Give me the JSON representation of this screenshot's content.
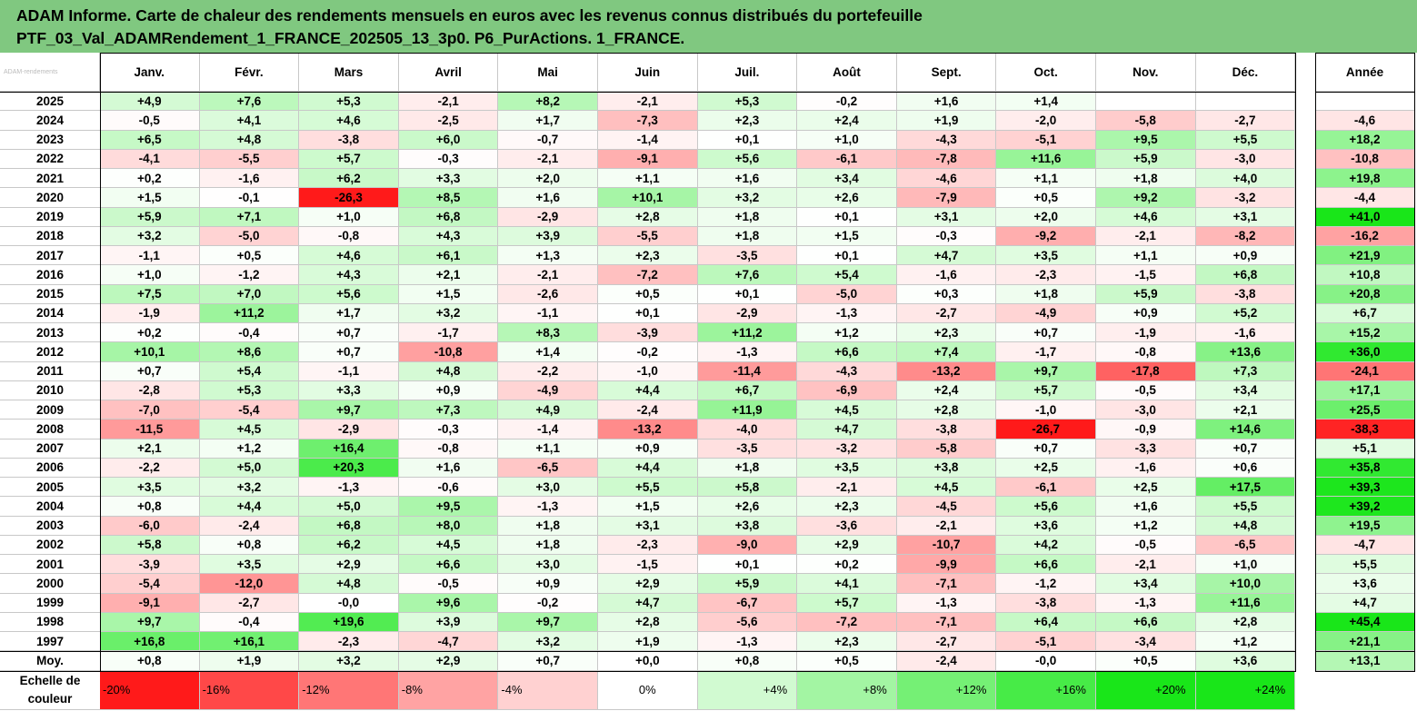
{
  "header": {
    "line1": "ADAM Informe. Carte de chaleur des rendements mensuels en euros avec les revenus connus distribués du portefeuille",
    "line2": "PTF_03_Val_ADAMRendement_1_FRANCE_202505_13_3p0. P6_PurActions. 1_FRANCE."
  },
  "corner_label": "ADAM-rendements",
  "chart_data": {
    "type": "heatmap",
    "title": "ADAM Informe. Carte de chaleur des rendements mensuels en euros avec les revenus connus distribués du portefeuille PTF_03_Val_ADAMRendement_1_FRANCE_202505_13_3p0. P6_PurActions. 1_FRANCE.",
    "months": [
      "Janv.",
      "Févr.",
      "Mars",
      "Avril",
      "Mai",
      "Juin",
      "Juil.",
      "Août",
      "Sept.",
      "Oct.",
      "Nov.",
      "Déc."
    ],
    "year_header": "Année",
    "rows": [
      {
        "label": "2025",
        "m": [
          "+4,9",
          "+7,6",
          "+5,3",
          "-2,1",
          "+8,2",
          "-2,1",
          "+5,3",
          "-0,2",
          "+1,6",
          "+1,4",
          "",
          ""
        ],
        "y": ""
      },
      {
        "label": "2024",
        "m": [
          "-0,5",
          "+4,1",
          "+4,6",
          "-2,5",
          "+1,7",
          "-7,3",
          "+2,3",
          "+2,4",
          "+1,9",
          "-2,0",
          "-5,8",
          "-2,7"
        ],
        "y": "-4,6"
      },
      {
        "label": "2023",
        "m": [
          "+6,5",
          "+4,8",
          "-3,8",
          "+6,0",
          "-0,7",
          "-1,4",
          "+0,1",
          "+1,0",
          "-4,3",
          "-5,1",
          "+9,5",
          "+5,5"
        ],
        "y": "+18,2"
      },
      {
        "label": "2022",
        "m": [
          "-4,1",
          "-5,5",
          "+5,7",
          "-0,3",
          "-2,1",
          "-9,1",
          "+5,6",
          "-6,1",
          "-7,8",
          "+11,6",
          "+5,9",
          "-3,0"
        ],
        "y": "-10,8"
      },
      {
        "label": "2021",
        "m": [
          "+0,2",
          "-1,6",
          "+6,2",
          "+3,3",
          "+2,0",
          "+1,1",
          "+1,6",
          "+3,4",
          "-4,6",
          "+1,1",
          "+1,8",
          "+4,0"
        ],
        "y": "+19,8"
      },
      {
        "label": "2020",
        "m": [
          "+1,5",
          "-0,1",
          "-26,3",
          "+8,5",
          "+1,6",
          "+10,1",
          "+3,2",
          "+2,6",
          "-7,9",
          "+0,5",
          "+9,2",
          "-3,2"
        ],
        "y": "-4,4"
      },
      {
        "label": "2019",
        "m": [
          "+5,9",
          "+7,1",
          "+1,0",
          "+6,8",
          "-2,9",
          "+2,8",
          "+1,8",
          "+0,1",
          "+3,1",
          "+2,0",
          "+4,6",
          "+3,1"
        ],
        "y": "+41,0"
      },
      {
        "label": "2018",
        "m": [
          "+3,2",
          "-5,0",
          "-0,8",
          "+4,3",
          "+3,9",
          "-5,5",
          "+1,8",
          "+1,5",
          "-0,3",
          "-9,2",
          "-2,1",
          "-8,2"
        ],
        "y": "-16,2"
      },
      {
        "label": "2017",
        "m": [
          "-1,1",
          "+0,5",
          "+4,6",
          "+6,1",
          "+1,3",
          "+2,3",
          "-3,5",
          "+0,1",
          "+4,7",
          "+3,5",
          "+1,1",
          "+0,9"
        ],
        "y": "+21,9"
      },
      {
        "label": "2016",
        "m": [
          "+1,0",
          "-1,2",
          "+4,3",
          "+2,1",
          "-2,1",
          "-7,2",
          "+7,6",
          "+5,4",
          "-1,6",
          "-2,3",
          "-1,5",
          "+6,8"
        ],
        "y": "+10,8"
      },
      {
        "label": "2015",
        "m": [
          "+7,5",
          "+7,0",
          "+5,6",
          "+1,5",
          "-2,6",
          "+0,5",
          "+0,1",
          "-5,0",
          "+0,3",
          "+1,8",
          "+5,9",
          "-3,8"
        ],
        "y": "+20,8"
      },
      {
        "label": "2014",
        "m": [
          "-1,9",
          "+11,2",
          "+1,7",
          "+3,2",
          "-1,1",
          "+0,1",
          "-2,9",
          "-1,3",
          "-2,7",
          "-4,9",
          "+0,9",
          "+5,2"
        ],
        "y": "+6,7"
      },
      {
        "label": "2013",
        "m": [
          "+0,2",
          "-0,4",
          "+0,7",
          "-1,7",
          "+8,3",
          "-3,9",
          "+11,2",
          "+1,2",
          "+2,3",
          "+0,7",
          "-1,9",
          "-1,6"
        ],
        "y": "+15,2"
      },
      {
        "label": "2012",
        "m": [
          "+10,1",
          "+8,6",
          "+0,7",
          "-10,8",
          "+1,4",
          "-0,2",
          "-1,3",
          "+6,6",
          "+7,4",
          "-1,7",
          "-0,8",
          "+13,6"
        ],
        "y": "+36,0"
      },
      {
        "label": "2011",
        "m": [
          "+0,7",
          "+5,4",
          "-1,1",
          "+4,8",
          "-2,2",
          "-1,0",
          "-11,4",
          "-4,3",
          "-13,2",
          "+9,7",
          "-17,8",
          "+7,3"
        ],
        "y": "-24,1"
      },
      {
        "label": "2010",
        "m": [
          "-2,8",
          "+5,3",
          "+3,3",
          "+0,9",
          "-4,9",
          "+4,4",
          "+6,7",
          "-6,9",
          "+2,4",
          "+5,7",
          "-0,5",
          "+3,4"
        ],
        "y": "+17,1"
      },
      {
        "label": "2009",
        "m": [
          "-7,0",
          "-5,4",
          "+9,7",
          "+7,3",
          "+4,9",
          "-2,4",
          "+11,9",
          "+4,5",
          "+2,8",
          "-1,0",
          "-3,0",
          "+2,1"
        ],
        "y": "+25,5"
      },
      {
        "label": "2008",
        "m": [
          "-11,5",
          "+4,5",
          "-2,9",
          "-0,3",
          "-1,4",
          "-13,2",
          "-4,0",
          "+4,7",
          "-3,8",
          "-26,7",
          "-0,9",
          "+14,6"
        ],
        "y": "-38,3"
      },
      {
        "label": "2007",
        "m": [
          "+2,1",
          "+1,2",
          "+16,4",
          "-0,8",
          "+1,1",
          "+0,9",
          "-3,5",
          "-3,2",
          "-5,8",
          "+0,7",
          "-3,3",
          "+0,7"
        ],
        "y": "+5,1"
      },
      {
        "label": "2006",
        "m": [
          "-2,2",
          "+5,0",
          "+20,3",
          "+1,6",
          "-6,5",
          "+4,4",
          "+1,8",
          "+3,5",
          "+3,8",
          "+2,5",
          "-1,6",
          "+0,6"
        ],
        "y": "+35,8"
      },
      {
        "label": "2005",
        "m": [
          "+3,5",
          "+3,2",
          "-1,3",
          "-0,6",
          "+3,0",
          "+5,5",
          "+5,8",
          "-2,1",
          "+4,5",
          "-6,1",
          "+2,5",
          "+17,5"
        ],
        "y": "+39,3"
      },
      {
        "label": "2004",
        "m": [
          "+0,8",
          "+4,4",
          "+5,0",
          "+9,5",
          "-1,3",
          "+1,5",
          "+2,6",
          "+2,3",
          "-4,5",
          "+5,6",
          "+1,6",
          "+5,5"
        ],
        "y": "+39,2"
      },
      {
        "label": "2003",
        "m": [
          "-6,0",
          "-2,4",
          "+6,8",
          "+8,0",
          "+1,8",
          "+3,1",
          "+3,8",
          "-3,6",
          "-2,1",
          "+3,6",
          "+1,2",
          "+4,8"
        ],
        "y": "+19,5"
      },
      {
        "label": "2002",
        "m": [
          "+5,8",
          "+0,8",
          "+6,2",
          "+4,5",
          "+1,8",
          "-2,3",
          "-9,0",
          "+2,9",
          "-10,7",
          "+4,2",
          "-0,5",
          "-6,5"
        ],
        "y": "-4,7"
      },
      {
        "label": "2001",
        "m": [
          "-3,9",
          "+3,5",
          "+2,9",
          "+6,6",
          "+3,0",
          "-1,5",
          "+0,1",
          "+0,2",
          "-9,9",
          "+6,6",
          "-2,1",
          "+1,0"
        ],
        "y": "+5,5"
      },
      {
        "label": "2000",
        "m": [
          "-5,4",
          "-12,0",
          "+4,8",
          "-0,5",
          "+0,9",
          "+2,9",
          "+5,9",
          "+4,1",
          "-7,1",
          "-1,2",
          "+3,4",
          "+10,0"
        ],
        "y": "+3,6"
      },
      {
        "label": "1999",
        "m": [
          "-9,1",
          "-2,7",
          "-0,0",
          "+9,6",
          "-0,2",
          "+4,7",
          "-6,7",
          "+5,7",
          "-1,3",
          "-3,8",
          "-1,3",
          "+11,6"
        ],
        "y": "+4,7"
      },
      {
        "label": "1998",
        "m": [
          "+9,7",
          "-0,4",
          "+19,6",
          "+3,9",
          "+9,7",
          "+2,8",
          "-5,6",
          "-7,2",
          "-7,1",
          "+6,4",
          "+6,6",
          "+2,8"
        ],
        "y": "+45,4"
      },
      {
        "label": "1997",
        "m": [
          "+16,8",
          "+16,1",
          "-2,3",
          "-4,7",
          "+3,2",
          "+1,9",
          "-1,3",
          "+2,3",
          "-2,7",
          "-5,1",
          "-3,4",
          "+1,2"
        ],
        "y": "+21,1"
      },
      {
        "label": "Moy.",
        "m": [
          "+0,8",
          "+1,9",
          "+3,2",
          "+2,9",
          "+0,7",
          "+0,0",
          "+0,8",
          "+0,5",
          "-2,4",
          "-0,0",
          "+0,5",
          "+3,6"
        ],
        "y": "+13,1"
      }
    ],
    "scale_label": "Echelle de couleur",
    "scale": [
      {
        "label": "-20%",
        "v": -20
      },
      {
        "label": "-16%",
        "v": -16
      },
      {
        "label": "-12%",
        "v": -12
      },
      {
        "label": "-8%",
        "v": -8
      },
      {
        "label": "-4%",
        "v": -4
      },
      {
        "label": "0%",
        "v": 0
      },
      {
        "label": "+4%",
        "v": 4
      },
      {
        "label": "+8%",
        "v": 8
      },
      {
        "label": "+12%",
        "v": 12
      },
      {
        "label": "+16%",
        "v": 16
      },
      {
        "label": "+20%",
        "v": 20
      },
      {
        "label": "+24%",
        "v": 24
      }
    ],
    "colors": {
      "neg_max": "#ff1a1a",
      "pos_max": "#19e619",
      "neutral": "#ffffff",
      "header_band": "#80c880"
    }
  }
}
